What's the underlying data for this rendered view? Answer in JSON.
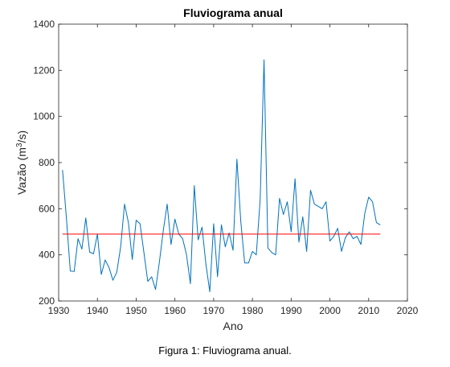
{
  "chart_data": {
    "type": "line",
    "title": "Fluviograma anual",
    "xlabel": "Ano",
    "ylabel_main": "Vazão (m",
    "ylabel_sup": "3",
    "ylabel_tail": "/s)",
    "xlim": [
      1930,
      2020
    ],
    "ylim": [
      200,
      1400
    ],
    "xticks": [
      1930,
      1940,
      1950,
      1960,
      1970,
      1980,
      1990,
      2000,
      2010,
      2020
    ],
    "yticks": [
      200,
      400,
      600,
      800,
      1000,
      1200,
      1400
    ],
    "grid": false,
    "series": [
      {
        "color": "#0072BD",
        "x": [
          1931,
          1932,
          1933,
          1934,
          1935,
          1936,
          1937,
          1938,
          1939,
          1940,
          1941,
          1942,
          1943,
          1944,
          1945,
          1946,
          1947,
          1948,
          1949,
          1950,
          1951,
          1952,
          1953,
          1954,
          1955,
          1956,
          1957,
          1958,
          1959,
          1960,
          1961,
          1962,
          1963,
          1964,
          1965,
          1966,
          1967,
          1968,
          1969,
          1970,
          1971,
          1972,
          1973,
          1974,
          1975,
          1976,
          1977,
          1978,
          1979,
          1980,
          1981,
          1982,
          1983,
          1984,
          1985,
          1986,
          1987,
          1988,
          1989,
          1990,
          1991,
          1992,
          1993,
          1994,
          1995,
          1996,
          1997,
          1998,
          1999,
          2000,
          2001,
          2002,
          2003,
          2004,
          2005,
          2006,
          2007,
          2008,
          2009,
          2010,
          2011,
          2012,
          2013
        ],
        "y": [
          768,
          560,
          330,
          328,
          470,
          425,
          560,
          412,
          405,
          490,
          315,
          378,
          345,
          290,
          325,
          435,
          620,
          540,
          380,
          550,
          535,
          410,
          285,
          305,
          250,
          370,
          505,
          620,
          445,
          555,
          490,
          470,
          400,
          275,
          700,
          465,
          520,
          360,
          240,
          535,
          305,
          530,
          435,
          495,
          420,
          815,
          545,
          365,
          365,
          415,
          400,
          640,
          1245,
          430,
          410,
          400,
          645,
          575,
          630,
          500,
          730,
          455,
          565,
          415,
          680,
          620,
          610,
          600,
          630,
          460,
          480,
          515,
          415,
          475,
          500,
          470,
          480,
          445,
          580,
          650,
          630,
          540,
          530
        ]
      },
      {
        "color": "#FF0000",
        "x": [
          1931,
          2013
        ],
        "y": [
          490,
          490
        ]
      }
    ]
  },
  "caption": "Figura 1: Fluviograma anual."
}
